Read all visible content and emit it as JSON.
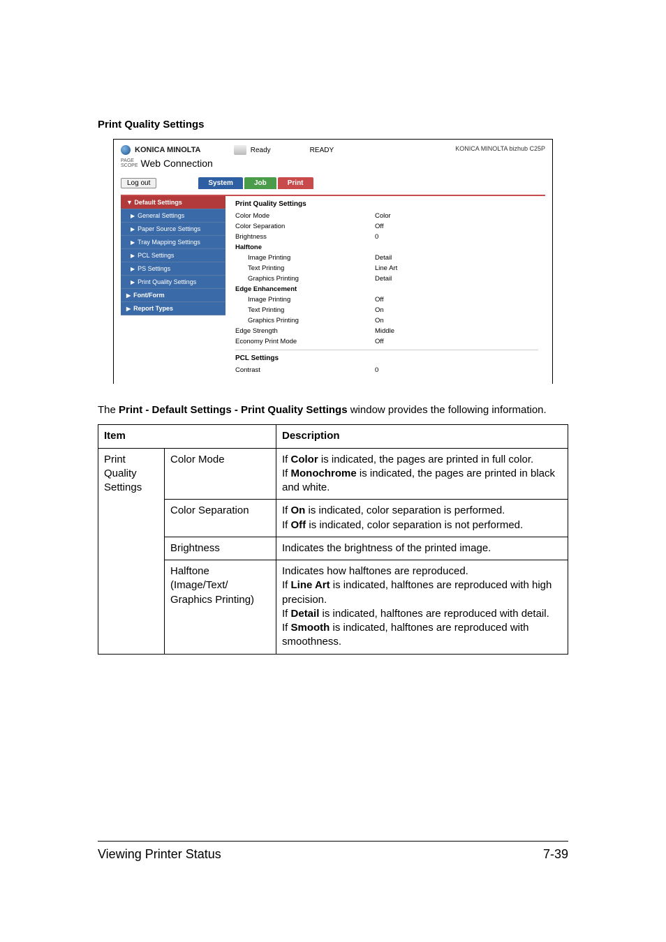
{
  "section_title": "Print Quality Settings",
  "screenshot": {
    "brand": "KONICA MINOLTA",
    "page_scope": "PAGE SCOPE",
    "web_conn": "Web Connection",
    "ready_small": "Ready",
    "ready_big": "READY",
    "model": "KONICA MINOLTA bizhub C25P",
    "logout": "Log out",
    "tabs": {
      "system": "System",
      "job": "Job",
      "print": "Print"
    },
    "sidebar": {
      "head": "▼ Default Settings",
      "items": [
        "General Settings",
        "Paper Source Settings",
        "Tray Mapping Settings",
        "PCL Settings",
        "PS Settings",
        "Print Quality Settings"
      ],
      "font_form": "Font/Form",
      "report_types": "Report Types"
    },
    "content": {
      "title": "Print Quality Settings",
      "rows1": [
        {
          "label": "Color Mode",
          "value": "Color"
        },
        {
          "label": "Color Separation",
          "value": "Off"
        },
        {
          "label": "Brightness",
          "value": "0"
        }
      ],
      "halftone_title": "Halftone",
      "halftone_rows": [
        {
          "label": "Image Printing",
          "value": "Detail"
        },
        {
          "label": "Text Printing",
          "value": "Line Art"
        },
        {
          "label": "Graphics Printing",
          "value": "Detail"
        }
      ],
      "edge_title": "Edge Enhancement",
      "edge_rows": [
        {
          "label": "Image Printing",
          "value": "Off"
        },
        {
          "label": "Text Printing",
          "value": "On"
        },
        {
          "label": "Graphics Printing",
          "value": "On"
        }
      ],
      "rows2": [
        {
          "label": "Edge Strength",
          "value": "Middle"
        },
        {
          "label": "Economy Print Mode",
          "value": "Off"
        }
      ],
      "pcl_title": "PCL Settings",
      "pcl_rows": [
        {
          "label": "Contrast",
          "value": "0"
        }
      ]
    }
  },
  "intro_pre": "The ",
  "intro_bold": "Print - Default Settings - Print Quality Settings",
  "intro_post": " window provides the following information.",
  "table": {
    "headers": {
      "item": "Item",
      "desc": "Description"
    },
    "group_label": "Print Quality Set­tings",
    "rows": [
      {
        "item": "Color Mode",
        "desc_parts": [
          {
            "t": "If ",
            "b": false
          },
          {
            "t": "Color",
            "b": true
          },
          {
            "t": " is indicated, the pages are printed in full color.",
            "b": false
          },
          {
            "br": true
          },
          {
            "t": "If ",
            "b": false
          },
          {
            "t": "Monochrome",
            "b": true
          },
          {
            "t": " is indicated, the pages are printed in black and white.",
            "b": false
          }
        ]
      },
      {
        "item": "Color Separation",
        "desc_parts": [
          {
            "t": "If ",
            "b": false
          },
          {
            "t": "On",
            "b": true
          },
          {
            "t": " is indicated, color separation is per­formed.",
            "b": false
          },
          {
            "br": true
          },
          {
            "t": "If ",
            "b": false
          },
          {
            "t": "Off",
            "b": true
          },
          {
            "t": " is indicated, color separation is not performed.",
            "b": false
          }
        ]
      },
      {
        "item": "Brightness",
        "desc_parts": [
          {
            "t": "Indicates the brightness of the printed image.",
            "b": false
          }
        ]
      },
      {
        "item": "Halftone\n(Image/Text/\nGraphics Printing)",
        "desc_parts": [
          {
            "t": "Indicates how halftones are reproduced.",
            "b": false
          },
          {
            "br": true
          },
          {
            "t": "If ",
            "b": false
          },
          {
            "t": "Line Art",
            "b": true
          },
          {
            "t": " is indicated, halftones are reproduced with high precision.",
            "b": false
          },
          {
            "br": true
          },
          {
            "t": "If ",
            "b": false
          },
          {
            "t": "Detail",
            "b": true
          },
          {
            "t": " is indicated, halftones are repro­duced with detail.",
            "b": false
          },
          {
            "br": true
          },
          {
            "t": "If ",
            "b": false
          },
          {
            "t": "Smooth",
            "b": true
          },
          {
            "t": " is indicated, halftones are reproduced with smoothness.",
            "b": false
          }
        ]
      }
    ]
  },
  "footer": {
    "left": "Viewing Printer Status",
    "right": "7-39"
  }
}
